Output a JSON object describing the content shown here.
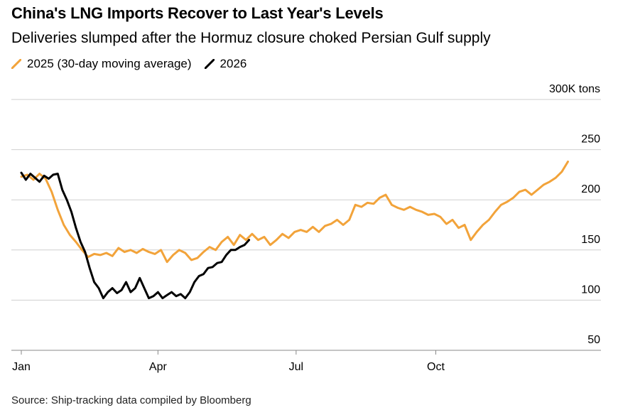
{
  "header": {
    "title": "China's LNG Imports Recover to Last Year's Levels",
    "subtitle": "Deliveries slumped after the Hormuz closure choked Persian Gulf supply"
  },
  "footer": {
    "source": "Source: Ship-tracking data compiled by Bloomberg"
  },
  "colors": {
    "series_2025": "#F2A33A",
    "series_2026": "#000000",
    "grid": "#cfcfcf"
  },
  "chart_data": {
    "type": "line",
    "title": "China's LNG Imports Recover to Last Year's Levels",
    "subtitle": "Deliveries slumped after the Hormuz closure choked Persian Gulf supply",
    "xlabel": "",
    "ylabel": "",
    "unit_label": "300K tons",
    "ylim": [
      50,
      300
    ],
    "yticks": [
      50,
      100,
      150,
      200,
      250
    ],
    "xlim": [
      1,
      365
    ],
    "xticks": [
      {
        "day": 1,
        "label": "Jan"
      },
      {
        "day": 91,
        "label": "Apr"
      },
      {
        "day": 182,
        "label": "Jul"
      },
      {
        "day": 274,
        "label": "Oct"
      }
    ],
    "grid": true,
    "legend": "top-left",
    "series": [
      {
        "name": "2025 (30-day moving average)",
        "x": [
          1,
          5,
          9,
          13,
          17,
          21,
          25,
          29,
          33,
          37,
          41,
          45,
          49,
          53,
          57,
          61,
          65,
          69,
          73,
          77,
          81,
          85,
          89,
          93,
          97,
          101,
          105,
          109,
          113,
          117,
          121,
          125,
          129,
          133,
          137,
          141,
          145,
          149,
          153,
          157,
          161,
          165,
          169,
          173,
          177,
          181,
          185,
          189,
          193,
          197,
          201,
          205,
          209,
          213,
          217,
          221,
          225,
          229,
          233,
          237,
          241,
          245,
          249,
          253,
          257,
          261,
          265,
          269,
          273,
          277,
          281,
          285,
          289,
          293,
          297,
          301,
          305,
          309,
          313,
          317,
          321,
          325,
          329,
          333,
          337,
          341,
          345,
          349,
          353,
          357,
          361
        ],
        "values": [
          223,
          225,
          220,
          226,
          221,
          208,
          190,
          175,
          165,
          158,
          150,
          143,
          146,
          145,
          147,
          144,
          152,
          148,
          150,
          147,
          151,
          148,
          146,
          150,
          138,
          145,
          150,
          147,
          140,
          142,
          148,
          153,
          150,
          158,
          163,
          155,
          165,
          160,
          166,
          160,
          163,
          155,
          160,
          166,
          162,
          168,
          170,
          168,
          173,
          168,
          174,
          176,
          180,
          175,
          180,
          195,
          193,
          197,
          196,
          202,
          205,
          195,
          192,
          190,
          193,
          190,
          188,
          185,
          186,
          183,
          176,
          180,
          172,
          175,
          160,
          168,
          175,
          180,
          188,
          195,
          198,
          202,
          208,
          210,
          205,
          210,
          215,
          218,
          222,
          228,
          238
        ]
      },
      {
        "name": "2026",
        "x": [
          1,
          4,
          7,
          10,
          13,
          16,
          19,
          22,
          25,
          28,
          31,
          34,
          37,
          40,
          43,
          46,
          49,
          52,
          55,
          58,
          61,
          64,
          67,
          70,
          73,
          76,
          79,
          82,
          85,
          88,
          91,
          94,
          97,
          100,
          103,
          106,
          109,
          112,
          115,
          118,
          121,
          124,
          127,
          130,
          133,
          136,
          139,
          142,
          145,
          148,
          151
        ],
        "values": [
          227,
          220,
          226,
          222,
          218,
          224,
          221,
          225,
          226,
          210,
          200,
          188,
          172,
          158,
          148,
          132,
          118,
          112,
          102,
          108,
          112,
          107,
          110,
          118,
          108,
          112,
          122,
          112,
          102,
          104,
          108,
          102,
          105,
          108,
          104,
          106,
          102,
          108,
          118,
          124,
          126,
          132,
          133,
          137,
          138,
          145,
          150,
          150,
          153,
          155,
          160
        ]
      }
    ]
  }
}
